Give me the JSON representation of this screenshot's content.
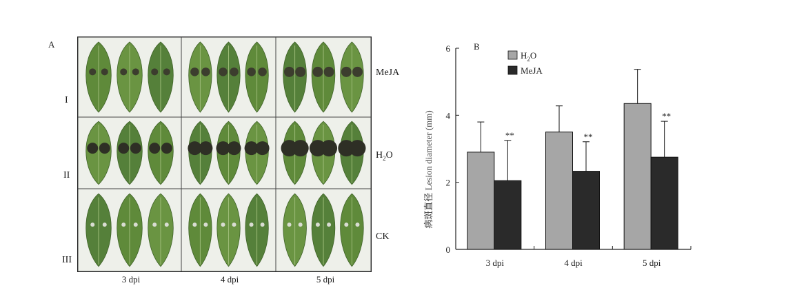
{
  "figure_a": {
    "panel_label": "A",
    "rows": [
      {
        "roman": "I",
        "treatment": "MeJA"
      },
      {
        "roman": "II",
        "treatment": "H2O"
      },
      {
        "roman": "III",
        "treatment": "CK"
      }
    ],
    "treatment_h2o_main": "H",
    "treatment_h2o_sub": "2",
    "treatment_h2o_tail": "O",
    "columns": [
      "3 dpi",
      "4 dpi",
      "5 dpi"
    ]
  },
  "chart_data": {
    "type": "bar",
    "panel_label": "B",
    "categories": [
      "3 dpi",
      "4 dpi",
      "5 dpi"
    ],
    "series": [
      {
        "name": "H2O",
        "name_main": "H",
        "name_sub": "2",
        "name_tail": "O",
        "color": "#a6a6a6",
        "values": [
          2.9,
          3.5,
          4.35
        ],
        "errors": [
          0.9,
          0.78,
          1.02
        ],
        "sig": [
          "",
          "",
          ""
        ]
      },
      {
        "name": "MeJA",
        "color": "#2a2a2a",
        "values": [
          2.05,
          2.33,
          2.75
        ],
        "errors": [
          1.2,
          0.88,
          1.07
        ],
        "sig": [
          "**",
          "**",
          "**"
        ]
      }
    ],
    "ylabel": "病斑直径 Lesion diameter (mm)",
    "ylim": [
      0,
      6
    ],
    "yticks": [
      0,
      2,
      4,
      6
    ],
    "grid": false,
    "legend_position": "top-left"
  }
}
